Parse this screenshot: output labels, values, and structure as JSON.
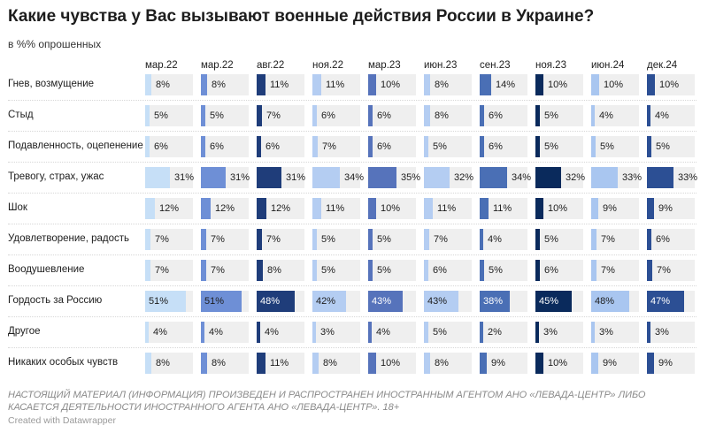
{
  "title": "Какие чувства у Вас вызывают военные действия России в Украине?",
  "subtitle": "в %% опрошенных",
  "footnote": "НАСТОЯЩИЙ МАТЕРИАЛ (ИНФОРМАЦИЯ) ПРОИЗВЕДЕН И РАСПРОСТРАНЕН ИНОСТРАННЫМ АГЕНТОМ АНО «ЛЕВАДА-ЦЕНТР» ЛИБО КАСАЕТСЯ ДЕЯТЕЛЬНОСТИ ИНОСТРАННОГО АГЕНТА АНО «ЛЕВАДА-ЦЕНТР». 18+",
  "credit": "Created with Datawrapper",
  "chart_data": {
    "type": "table",
    "columns": [
      "мар.22",
      "мар.22",
      "авг.22",
      "ноя.22",
      "мар.23",
      "июн.23",
      "сен.23",
      "ноя.23",
      "июн.24",
      "дек.24"
    ],
    "column_colors": [
      "#c6dff7",
      "#6e8fd6",
      "#1f3d7a",
      "#b4cdf2",
      "#5673bb",
      "#b4cdf2",
      "#4a6fb5",
      "#0a2a5c",
      "#a9c6f0",
      "#2c4f94"
    ],
    "value_suffix": "%",
    "value_max": 60,
    "rows": [
      {
        "label": "Гнев, возмущение",
        "values": [
          8,
          8,
          11,
          11,
          10,
          8,
          14,
          10,
          10,
          10
        ]
      },
      {
        "label": "Стыд",
        "values": [
          5,
          5,
          7,
          6,
          6,
          8,
          6,
          5,
          4,
          4
        ]
      },
      {
        "label": "Подавленность, оцепенение",
        "values": [
          6,
          6,
          6,
          7,
          6,
          5,
          6,
          5,
          5,
          5
        ]
      },
      {
        "label": "Тревогу, страх, ужас",
        "values": [
          31,
          31,
          31,
          34,
          35,
          32,
          34,
          32,
          33,
          33
        ]
      },
      {
        "label": "Шок",
        "values": [
          12,
          12,
          12,
          11,
          10,
          11,
          11,
          10,
          9,
          9
        ]
      },
      {
        "label": "Удовлетворение, радость",
        "values": [
          7,
          7,
          7,
          5,
          5,
          7,
          4,
          5,
          7,
          6
        ]
      },
      {
        "label": "Воодушевление",
        "values": [
          7,
          7,
          8,
          5,
          5,
          6,
          5,
          6,
          7,
          7
        ]
      },
      {
        "label": "Гордость за Россию",
        "values": [
          51,
          51,
          48,
          42,
          43,
          43,
          38,
          45,
          48,
          47
        ]
      },
      {
        "label": "Другое",
        "values": [
          4,
          4,
          4,
          3,
          4,
          5,
          2,
          3,
          3,
          3
        ]
      },
      {
        "label": "Никаких особых чувств",
        "values": [
          8,
          8,
          11,
          8,
          10,
          8,
          9,
          10,
          9,
          9
        ]
      }
    ]
  }
}
